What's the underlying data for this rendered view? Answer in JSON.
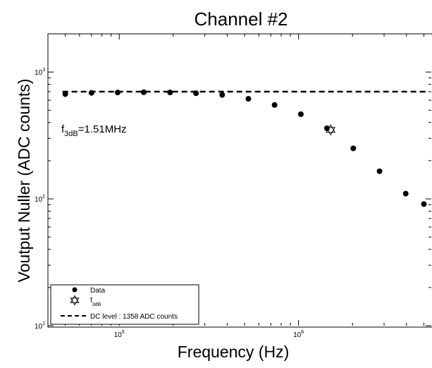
{
  "chart_data": {
    "type": "scatter",
    "title": "Channel #2",
    "xlabel": "Frequency (Hz)",
    "ylabel": "Voutput Nuller (ADC counts)",
    "xscale": "log",
    "yscale": "log",
    "xlim": [
      40000,
      5500000
    ],
    "ylim": [
      10,
      2000
    ],
    "x_ticks": [
      {
        "value": 100000,
        "base": "10",
        "exp": "5"
      },
      {
        "value": 1000000,
        "base": "10",
        "exp": "6"
      }
    ],
    "y_ticks": [
      {
        "value": 10,
        "base": "10",
        "exp": "1"
      },
      {
        "value": 100,
        "base": "10",
        "exp": "2"
      },
      {
        "value": 1000,
        "base": "10",
        "exp": "3"
      }
    ],
    "grid": false,
    "legend_position": "bottom-left",
    "series": [
      {
        "name": "Data",
        "marker": "circle",
        "color": "#000000",
        "points": [
          {
            "x": 50000,
            "y": 670
          },
          {
            "x": 70000,
            "y": 685
          },
          {
            "x": 98000,
            "y": 690
          },
          {
            "x": 137000,
            "y": 693
          },
          {
            "x": 192000,
            "y": 690
          },
          {
            "x": 268000,
            "y": 680
          },
          {
            "x": 375000,
            "y": 660
          },
          {
            "x": 525000,
            "y": 615
          },
          {
            "x": 735000,
            "y": 550
          },
          {
            "x": 1030000,
            "y": 465
          },
          {
            "x": 1440000,
            "y": 360
          },
          {
            "x": 2020000,
            "y": 250
          },
          {
            "x": 2830000,
            "y": 165
          },
          {
            "x": 3960000,
            "y": 110
          },
          {
            "x": 5000000,
            "y": 91
          }
        ]
      },
      {
        "name": "f",
        "name_sub": "3dB",
        "marker": "hexagram",
        "color": "#000000",
        "points": [
          {
            "x": 1510000,
            "y": 350
          }
        ]
      },
      {
        "name": "DC level : 1358 ADC counts",
        "marker": "dashed-line",
        "color": "#000000",
        "y": 700
      }
    ],
    "annotation": {
      "main": "f",
      "sub": "3dB",
      "rest": "=1.51MHz"
    }
  }
}
